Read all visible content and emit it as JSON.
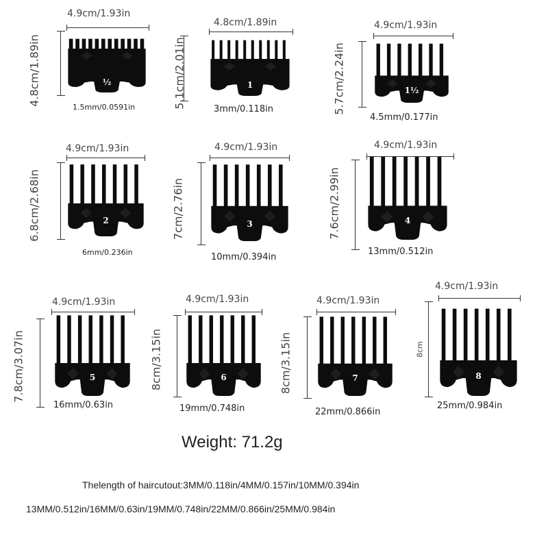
{
  "guards": [
    {
      "number": "½",
      "width": "4.9cm/1.93in",
      "height": "4.8cm/1.89in",
      "cut": "1.5mm/0.0591in"
    },
    {
      "number": "1",
      "width": "4.8cm/1.89in",
      "height": "5.1cm/2.01in",
      "cut": "3mm/0.118in"
    },
    {
      "number": "1½",
      "width": "4.9cm/1.93in",
      "height": "5.7cm/2.24in",
      "cut": "4.5mm/0.177in"
    },
    {
      "number": "2",
      "width": "4.9cm/1.93in",
      "height": "6.8cm/2.68in",
      "cut": "6mm/0.236in"
    },
    {
      "number": "3",
      "width": "4.9cm/1.93in",
      "height": "7cm/2.76in",
      "cut": "10mm/0.394in"
    },
    {
      "number": "4",
      "width": "4.9cm/1.93in",
      "height": "7.6cm/2.99in",
      "cut": "13mm/0.512in"
    },
    {
      "number": "5",
      "width": "4.9cm/1.93in",
      "height": "7.8cm/3.07in",
      "cut": "16mm/0.63in"
    },
    {
      "number": "6",
      "width": "4.9cm/1.93in",
      "height": "8cm/3.15in",
      "cut": "19mm/0.748in"
    },
    {
      "number": "7",
      "width": "4.9cm/1.93in",
      "height": "8cm/3.15in",
      "cut": "22mm/0.866in"
    },
    {
      "number": "8",
      "width": "4.9cm/1.93in",
      "height": "8cm",
      "cut": "25mm/0.984in"
    }
  ],
  "weight": "Weight: 71.2g",
  "notes": [
    "Thelength of haircutout:3MM/0.118in/4MM/0.157in/10MM/0.394in",
    "13MM/0.512in/16MM/0.63in/19MM/0.748in/22MM/0.866in/25MM/0.984in"
  ],
  "colors": {
    "guard": "#0d0d0d",
    "text": "#333333"
  }
}
